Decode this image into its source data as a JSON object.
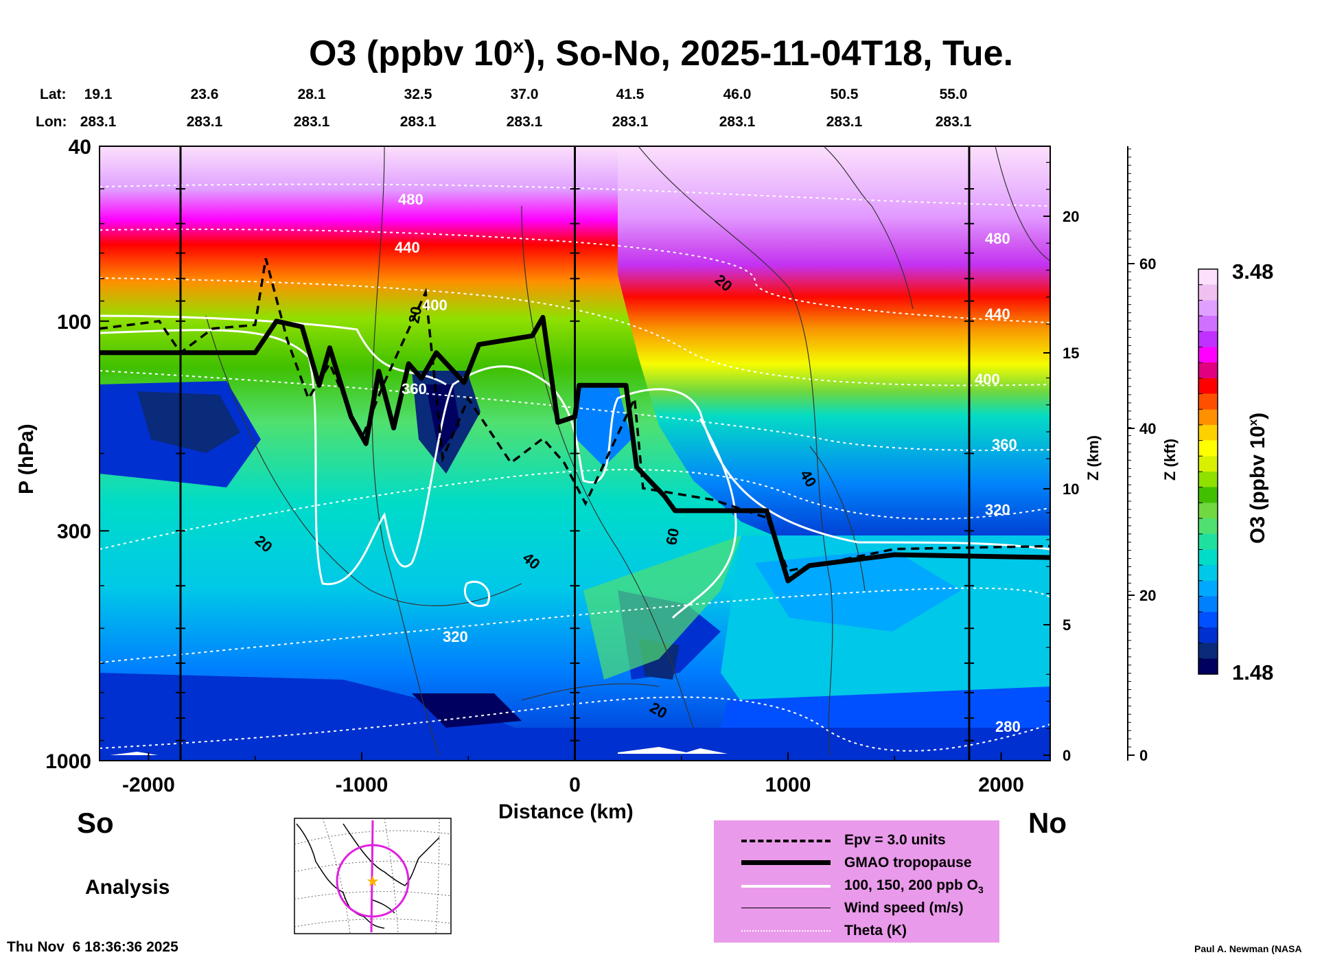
{
  "title": {
    "prefix": "O3 (ppbv 10",
    "superscript": "x",
    "suffix": "), So-No, 2025-11-04T18, Tue."
  },
  "header": {
    "lat_label": "Lat:",
    "lon_label": "Lon:",
    "lat_values": [
      "19.1",
      "23.6",
      "28.1",
      "32.5",
      "37.0",
      "41.5",
      "46.0",
      "50.5",
      "55.0"
    ],
    "lon_values": [
      "283.1",
      "283.1",
      "283.1",
      "283.1",
      "283.1",
      "283.1",
      "283.1",
      "283.1",
      "283.1"
    ]
  },
  "chart_data": {
    "type": "heatmap",
    "title": "O3 (ppbv 10x), So-No, 2025-11-04T18, Tue.",
    "xlabel": "Distance (km)",
    "ylabel": "P (hPa)",
    "y2label": "Z (km)",
    "y3label": "Z (kft)",
    "xlim": [
      -2230,
      2230
    ],
    "ylim": [
      1000,
      40
    ],
    "y_scale": "log",
    "x_ticks": [
      "-2000",
      "-1000",
      "0",
      "1000",
      "2000"
    ],
    "x_tick_values": [
      -2000,
      -1000,
      0,
      1000,
      2000
    ],
    "y_ticks": [
      "40",
      "100",
      "300",
      "1000"
    ],
    "y_tick_values": [
      40,
      100,
      300,
      1000
    ],
    "z_km_ticks": [
      "0",
      "5",
      "10",
      "15",
      "20"
    ],
    "z_kft_ticks": [
      "0",
      "20",
      "40",
      "60"
    ],
    "vertical_lines_km": [
      -1850,
      0,
      1850
    ],
    "colorbar": {
      "title_prefix": "O3 (ppbv 10",
      "title_sup": "x",
      "title_suffix": ")",
      "min_label": "1.48",
      "max_label": "3.48",
      "colors": [
        "#000060",
        "#0a2a7a",
        "#0030d0",
        "#0050ff",
        "#0080ff",
        "#00a8ff",
        "#00c8e8",
        "#00dcc8",
        "#20e0a0",
        "#50e070",
        "#70d840",
        "#40c000",
        "#90e000",
        "#d8f000",
        "#ffff00",
        "#ffd000",
        "#ff9000",
        "#ff5000",
        "#ff0000",
        "#e00080",
        "#ff00ff",
        "#c030ff",
        "#d070ff",
        "#e0a0ff",
        "#f0c0f0",
        "#fce0fc"
      ]
    },
    "theta_labels": [
      "480",
      "440",
      "400",
      "360",
      "320",
      "280",
      "480",
      "440",
      "400",
      "360",
      "320"
    ],
    "wind_labels": [
      "20",
      "20",
      "20",
      "40",
      "40",
      "60",
      "20"
    ],
    "ozone_labels": [
      "20"
    ],
    "tropopause_profile": [
      {
        "x": -2230,
        "p": 118
      },
      {
        "x": -1500,
        "p": 118
      },
      {
        "x": -1400,
        "p": 100
      },
      {
        "x": -1280,
        "p": 103
      },
      {
        "x": -1200,
        "p": 140
      },
      {
        "x": -1150,
        "p": 115
      },
      {
        "x": -1050,
        "p": 165
      },
      {
        "x": -980,
        "p": 190
      },
      {
        "x": -920,
        "p": 130
      },
      {
        "x": -850,
        "p": 175
      },
      {
        "x": -780,
        "p": 125
      },
      {
        "x": -720,
        "p": 135
      },
      {
        "x": -650,
        "p": 118
      },
      {
        "x": -520,
        "p": 138
      },
      {
        "x": -450,
        "p": 113
      },
      {
        "x": -300,
        "p": 110
      },
      {
        "x": -200,
        "p": 108
      },
      {
        "x": -150,
        "p": 98
      },
      {
        "x": -80,
        "p": 170
      },
      {
        "x": 0,
        "p": 165
      },
      {
        "x": 20,
        "p": 140
      },
      {
        "x": 240,
        "p": 140
      },
      {
        "x": 290,
        "p": 215
      },
      {
        "x": 420,
        "p": 250
      },
      {
        "x": 470,
        "p": 270
      },
      {
        "x": 900,
        "p": 270
      },
      {
        "x": 1000,
        "p": 390
      },
      {
        "x": 1100,
        "p": 360
      },
      {
        "x": 1500,
        "p": 340
      },
      {
        "x": 2230,
        "p": 345
      }
    ],
    "epv_profile": [
      {
        "x": -2230,
        "p": 104
      },
      {
        "x": -1950,
        "p": 100
      },
      {
        "x": -1850,
        "p": 118
      },
      {
        "x": -1700,
        "p": 104
      },
      {
        "x": -1500,
        "p": 102
      },
      {
        "x": -1450,
        "p": 72
      },
      {
        "x": -1350,
        "p": 110
      },
      {
        "x": -1250,
        "p": 150
      },
      {
        "x": -1150,
        "p": 125
      },
      {
        "x": -1000,
        "p": 185
      },
      {
        "x": -900,
        "p": 140
      },
      {
        "x": -700,
        "p": 86
      },
      {
        "x": -620,
        "p": 205
      },
      {
        "x": -500,
        "p": 150
      },
      {
        "x": -300,
        "p": 210
      },
      {
        "x": -150,
        "p": 185
      },
      {
        "x": -50,
        "p": 210
      },
      {
        "x": 50,
        "p": 260
      },
      {
        "x": 280,
        "p": 150
      },
      {
        "x": 320,
        "p": 240
      },
      {
        "x": 650,
        "p": 255
      },
      {
        "x": 900,
        "p": 280
      },
      {
        "x": 1000,
        "p": 370
      },
      {
        "x": 1500,
        "p": 330
      },
      {
        "x": 2230,
        "p": 325
      }
    ]
  },
  "labels": {
    "so": "So",
    "no": "No",
    "analysis": "Analysis",
    "timestamp": "Thu Nov  6 18:36:36 2025",
    "credit": "Paul A. Newman (NASA"
  },
  "legend": {
    "bg_color": "#ea9aea",
    "items": [
      {
        "label": "Epv = 3.0 units"
      },
      {
        "label": "GMAO tropopause"
      },
      {
        "label_prefix": "100, 150, 200 ppb O",
        "label_sub": "3"
      },
      {
        "label": "Wind speed (m/s)"
      },
      {
        "label": "Theta (K)"
      }
    ]
  },
  "colors": {
    "tropopause": "#000000",
    "epv": "#000000",
    "ozone_contour": "#ffffff",
    "theta": "#ffffff",
    "wind": "#333333",
    "map_track": "#e020e0",
    "map_star": "#ffb000"
  }
}
